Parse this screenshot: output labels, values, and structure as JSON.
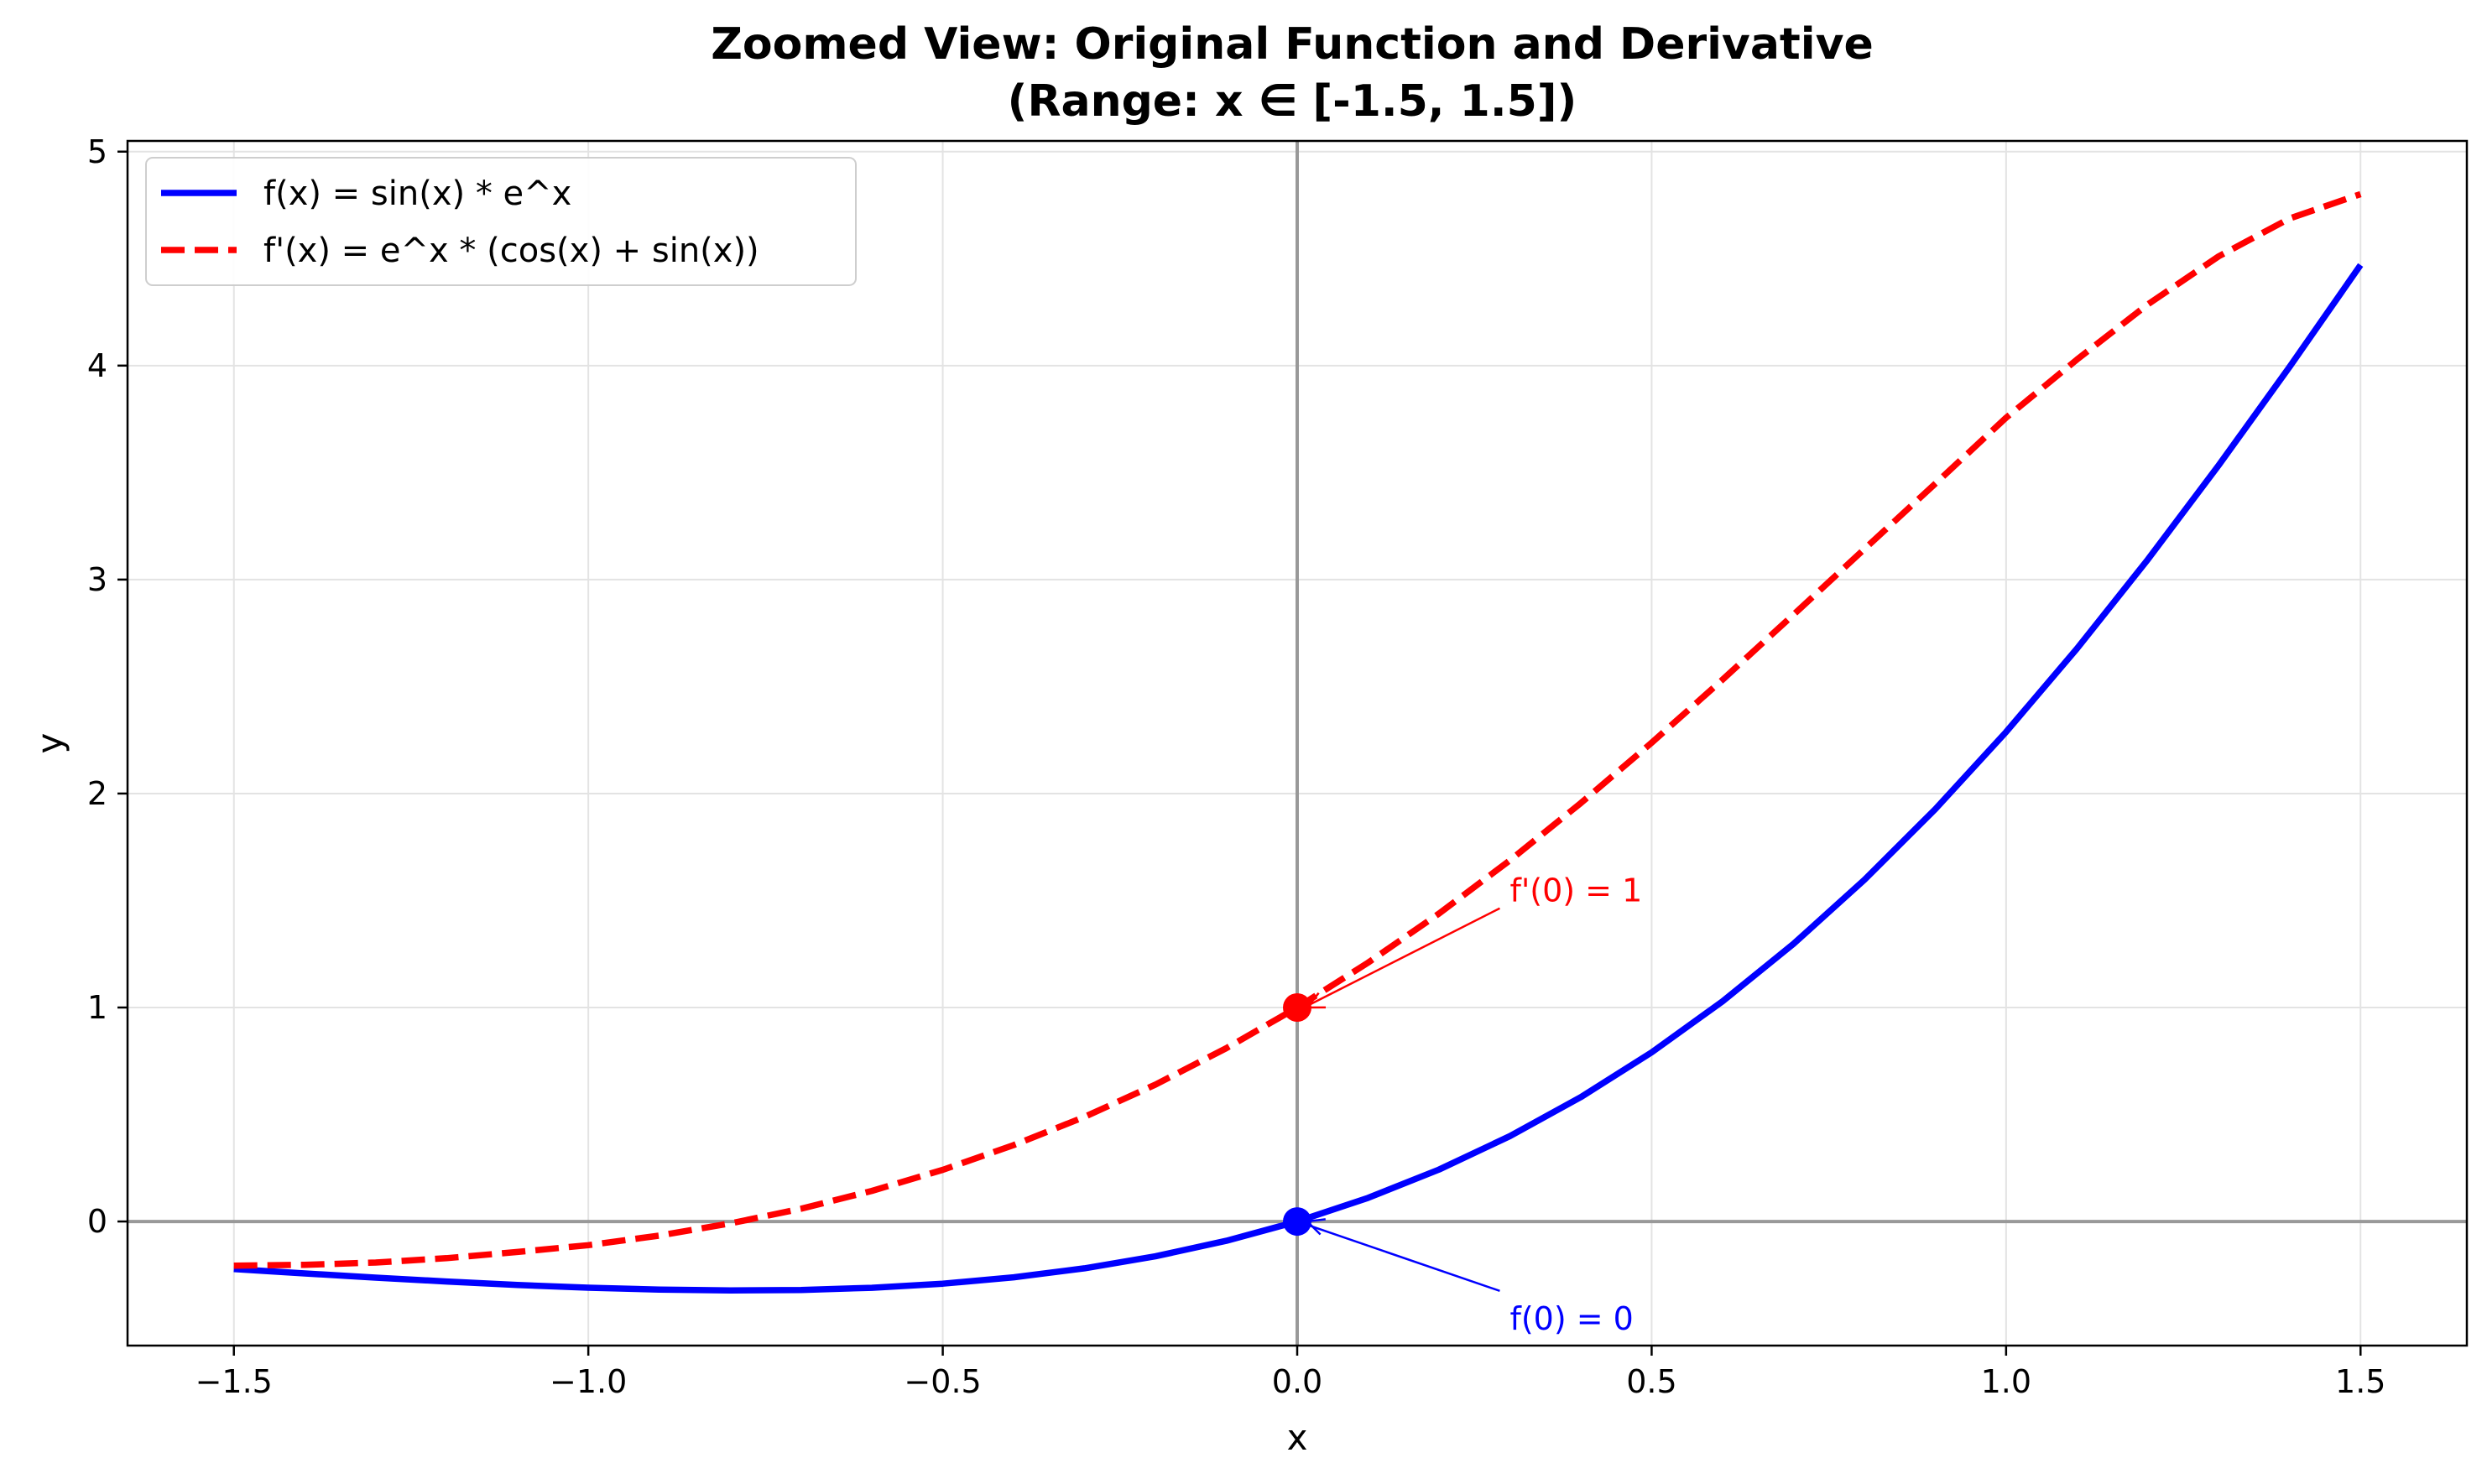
{
  "chart_data": {
    "type": "line",
    "title": "Zoomed View: Original Function and Derivative",
    "subtitle": "(Range: x ∈ [-1.5, 1.5])",
    "xlabel": "x",
    "ylabel": "y",
    "xlim": [
      -1.65,
      1.65
    ],
    "ylim": [
      -0.58,
      5.05
    ],
    "xticks": [
      -1.5,
      -1.0,
      -0.5,
      0.0,
      0.5,
      1.0,
      1.5
    ],
    "xtick_labels": [
      "−1.5",
      "−1.0",
      "−0.5",
      "0.0",
      "0.5",
      "1.0",
      "1.5"
    ],
    "yticks": [
      0,
      1,
      2,
      3,
      4,
      5
    ],
    "ytick_labels": [
      "0",
      "1",
      "2",
      "3",
      "4",
      "5"
    ],
    "grid": true,
    "legend_position": "top-left",
    "reference_lines": {
      "x": 0,
      "y": 0,
      "color": "#999999"
    },
    "series": [
      {
        "name": "f(x) = sin(x) * e^x",
        "color": "#0000ff",
        "style": "solid",
        "x": [
          -1.5,
          -1.4,
          -1.3,
          -1.2,
          -1.1,
          -1.0,
          -0.9,
          -0.8,
          -0.7,
          -0.6,
          -0.5,
          -0.4,
          -0.3,
          -0.2,
          -0.1,
          0.0,
          0.1,
          0.2,
          0.3,
          0.4,
          0.5,
          0.6,
          0.7,
          0.8,
          0.9,
          1.0,
          1.1,
          1.2,
          1.3,
          1.4,
          1.5
        ],
        "y": [
          -0.2226,
          -0.2429,
          -0.2623,
          -0.2806,
          -0.297,
          -0.3096,
          -0.3184,
          -0.3223,
          -0.32,
          -0.3099,
          -0.2908,
          -0.261,
          -0.2189,
          -0.1627,
          -0.0903,
          0.0,
          0.1103,
          0.2427,
          0.3989,
          0.5809,
          0.7904,
          1.0288,
          1.2973,
          1.5965,
          1.9267,
          2.2874,
          2.6773,
          3.0941,
          3.5348,
          3.9947,
          4.4702
        ]
      },
      {
        "name": "f'(x) = e^x * (cos(x) + sin(x))",
        "color": "#ff0000",
        "style": "dashed",
        "x": [
          -1.5,
          -1.4,
          -1.3,
          -1.2,
          -1.1,
          -1.0,
          -0.9,
          -0.8,
          -0.7,
          -0.6,
          -0.5,
          -0.4,
          -0.3,
          -0.2,
          -0.1,
          0.0,
          0.1,
          0.2,
          0.3,
          0.4,
          0.5,
          0.6,
          0.7,
          0.8,
          0.9,
          1.0,
          1.1,
          1.2,
          1.3,
          1.4,
          1.5
        ],
        "y": [
          -0.2068,
          -0.2025,
          -0.1918,
          -0.1715,
          -0.1426,
          -0.1108,
          -0.0661,
          -0.0092,
          0.0593,
          0.1431,
          0.2415,
          0.3569,
          0.4889,
          0.6398,
          0.8099,
          1.0,
          1.2098,
          1.4392,
          1.6878,
          1.9551,
          2.2373,
          2.532,
          2.8355,
          3.1423,
          3.4482,
          3.7561,
          4.0283,
          4.2861,
          4.5108,
          4.6878,
          4.8014
        ]
      }
    ],
    "points": [
      {
        "x": 0,
        "y": 0,
        "color": "#0000ff"
      },
      {
        "x": 0,
        "y": 1,
        "color": "#ff0000"
      }
    ],
    "annotations": [
      {
        "text": "f(0) = 0",
        "x": 0,
        "y": 0,
        "text_x": 0.3,
        "text_y": -0.45,
        "color": "#0000ff"
      },
      {
        "text": "f'(0) = 1",
        "x": 0,
        "y": 1,
        "text_x": 0.3,
        "text_y": 1.55,
        "color": "#ff0000"
      }
    ]
  }
}
